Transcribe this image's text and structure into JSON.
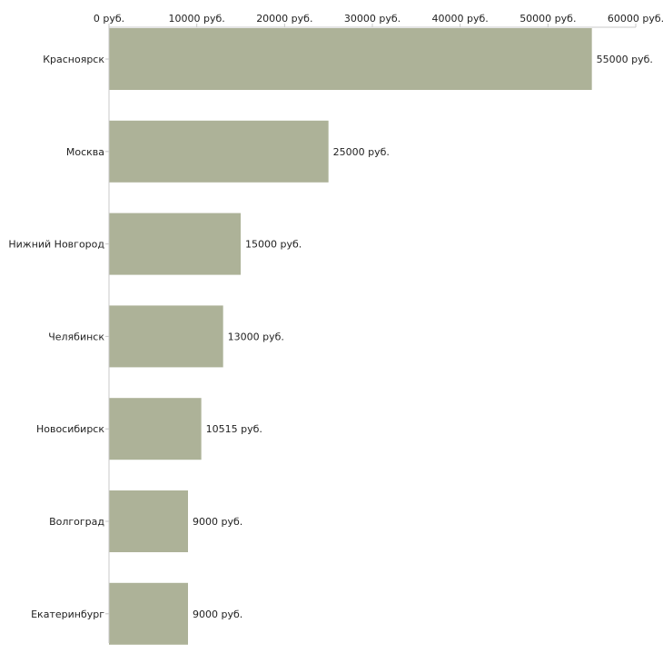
{
  "chart_data": {
    "type": "bar",
    "orientation": "horizontal",
    "title": "",
    "xlabel": "",
    "ylabel": "",
    "unit_suffix": " руб.",
    "xlim": [
      0,
      60000
    ],
    "ticks": [
      0,
      10000,
      20000,
      30000,
      40000,
      50000,
      60000
    ],
    "tick_labels": [
      "0 руб.",
      "10000 руб.",
      "20000 руб.",
      "30000 руб.",
      "40000 руб.",
      "50000 руб.",
      "60000 руб."
    ],
    "categories": [
      "Красноярск",
      "Москва",
      "Нижний Новгород",
      "Челябинск",
      "Новосибирск",
      "Волгоград",
      "Екатеринбург"
    ],
    "values": [
      55000,
      25000,
      15000,
      13000,
      10515,
      9000,
      9000
    ],
    "value_labels": [
      "55000 руб.",
      "25000 руб.",
      "15000 руб.",
      "13000 руб.",
      "10515 руб.",
      "9000 руб.",
      "9000 руб."
    ],
    "bar_color": "#adb298",
    "axis_color": "#c8c8c8",
    "grid": false
  }
}
